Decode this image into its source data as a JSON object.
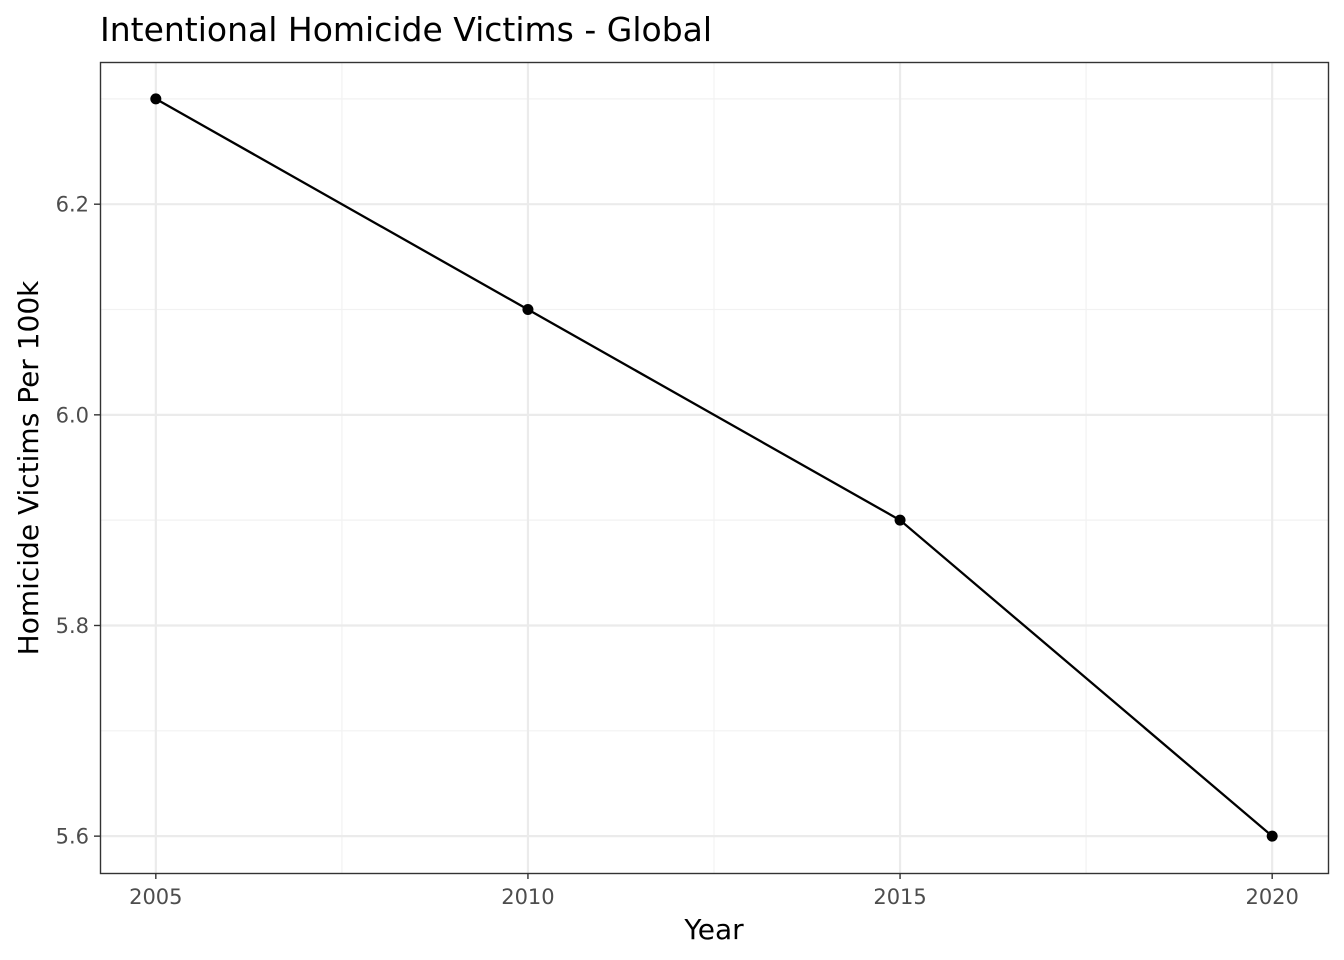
{
  "chart_data": {
    "type": "line",
    "title": "Intentional Homicide Victims - Global",
    "xlabel": "Year",
    "ylabel": "Homicide Victims Per 100k",
    "x": [
      2005,
      2010,
      2015,
      2020
    ],
    "series": [
      {
        "values": [
          6.3,
          6.1,
          5.9,
          5.6
        ]
      }
    ],
    "xlim": [
      2004.25,
      2020.75
    ],
    "ylim": [
      5.565,
      6.335
    ],
    "x_ticks": [
      2005,
      2010,
      2015,
      2020
    ],
    "x_tick_labels": [
      "2005",
      "2010",
      "2015",
      "2020"
    ],
    "x_minor_ticks": [
      2007.5,
      2012.5,
      2017.5
    ],
    "y_ticks": [
      5.6,
      5.8,
      6.0,
      6.2
    ],
    "y_tick_labels": [
      "5.6",
      "5.8",
      "6.0",
      "6.2"
    ],
    "y_minor_ticks": [
      5.7,
      5.9,
      6.1,
      6.3
    ],
    "grid": true,
    "legend": "none",
    "colors": {
      "line": "#000000",
      "point": "#000000",
      "grid": "#ebebeb",
      "tick_text": "#4d4d4d"
    }
  }
}
